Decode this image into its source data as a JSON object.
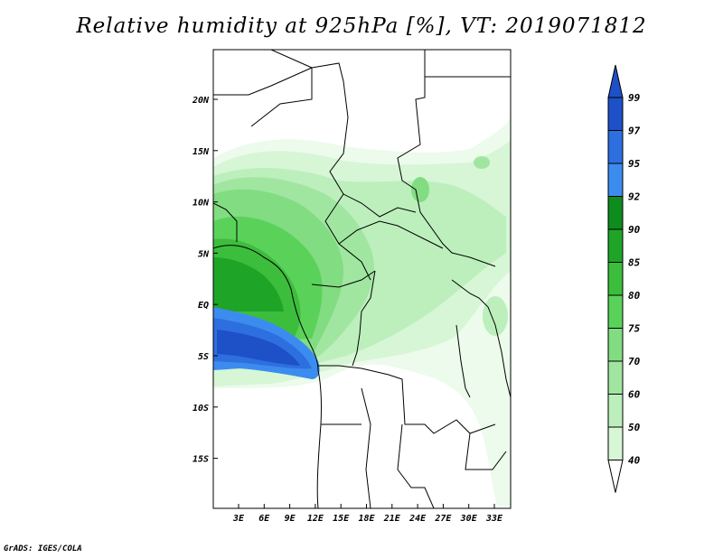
{
  "figure": {
    "title": "Relative humidity at 925hPa [%], VT: 2019071812",
    "credit": "GrADS: IGES/COLA"
  },
  "map": {
    "region": "Central Africa",
    "lat_ticks": [
      "20N",
      "15N",
      "10N",
      "5N",
      "EQ",
      "5S",
      "10S",
      "15S"
    ],
    "lon_ticks": [
      "3E",
      "6E",
      "9E",
      "12E",
      "15E",
      "18E",
      "21E",
      "24E",
      "27E",
      "30E",
      "33E"
    ],
    "features": [
      "Gulf of Guinea high-humidity band (95-99%) offshore Gabon/Congo",
      "moist zone over Cameroon/Nigeria (80-92%)",
      "drier Sahara north of 15N",
      "dry southern Africa south of 8S"
    ]
  },
  "colorbar": {
    "labels": [
      "99",
      "97",
      "95",
      "92",
      "90",
      "85",
      "80",
      "75",
      "70",
      "60",
      "50",
      "40"
    ],
    "colors": [
      "#1e50c8",
      "#2e6fe0",
      "#3c8cf0",
      "#0e8c1e",
      "#1ea528",
      "#3cbe3c",
      "#5ad25a",
      "#82dc82",
      "#a0e6a0",
      "#bcefbc",
      "#d6f6d6",
      "#ecfbec"
    ]
  }
}
